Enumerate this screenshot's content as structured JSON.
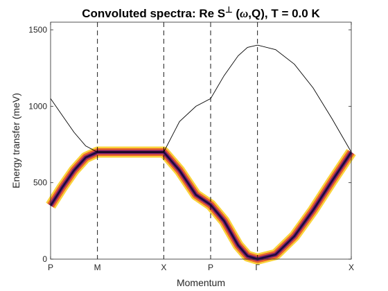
{
  "chart_data": {
    "type": "line",
    "title": {
      "prefix": "Convoluted spectra: Re S",
      "superscript": "⊥",
      "open": " (",
      "omega": "ω",
      "suffix": ",Q), T =   0.0 K"
    },
    "xlabel": "Momentum",
    "ylabel": "Energy transfer (meV)",
    "ylim": [
      0,
      1550
    ],
    "yticks": [
      0,
      500,
      1000,
      1500
    ],
    "xticks": [
      {
        "label": "P",
        "q": 0
      },
      {
        "label": "M",
        "q": 1
      },
      {
        "label": "X",
        "q": 2.414
      },
      {
        "label": "P",
        "q": 3.414
      },
      {
        "label": "Γ",
        "q": 4.414
      },
      {
        "label": "X",
        "q": 6.414
      }
    ],
    "vlines_at": [
      1,
      2.414,
      3.414,
      4.414
    ],
    "series": [
      {
        "q": [
          0,
          0.25,
          0.5,
          0.75,
          1.0,
          1.5,
          2.0,
          2.414,
          2.75,
          3.1,
          3.414,
          3.7,
          4.0,
          4.2,
          4.414,
          4.8,
          5.2,
          5.6,
          6.0,
          6.414
        ],
        "energy": [
          1050,
          940,
          830,
          740,
          700,
          700,
          700,
          700,
          900,
          1000,
          1050,
          1200,
          1330,
          1385,
          1400,
          1370,
          1275,
          1120,
          920,
          700
        ]
      },
      {
        "q": [
          0,
          0.25,
          0.5,
          0.75,
          1.0,
          1.5,
          2.0,
          2.414,
          2.75,
          3.1,
          3.414,
          3.7,
          4.0,
          4.2,
          4.414,
          4.8,
          5.2,
          5.6,
          6.0,
          6.414
        ],
        "energy": [
          350,
          470,
          580,
          665,
          700,
          700,
          700,
          700,
          580,
          420,
          355,
          250,
          90,
          20,
          0,
          30,
          150,
          320,
          510,
          700
        ]
      }
    ],
    "colors": {
      "line": "#000000",
      "vline": "#000000",
      "band_core": "#1a0a3a",
      "band_mid": "#7a1f6b",
      "band_orange": "#e8612c",
      "band_yellow": "#f9d33b"
    }
  }
}
